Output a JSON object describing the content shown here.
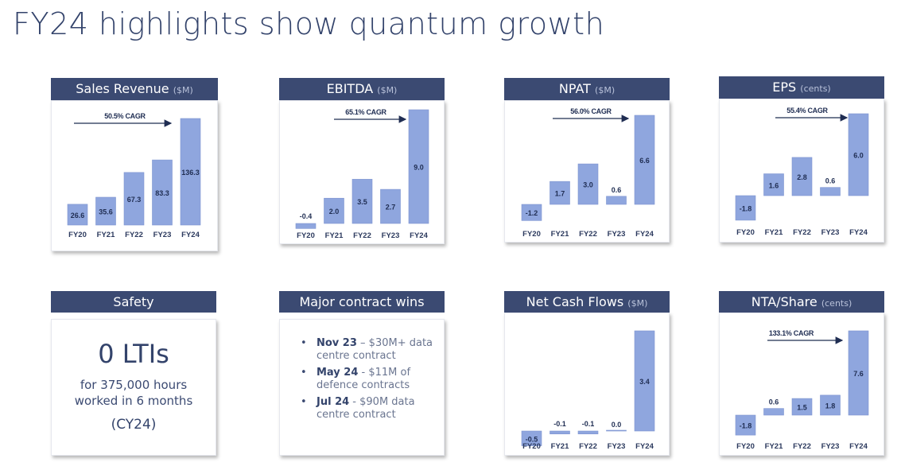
{
  "page_title": "FY24 highlights show quantum growth",
  "colors": {
    "header_bg": "#3b4a72",
    "bar": "#8fa6de",
    "bar_stroke": "#7e95d0",
    "text": "#2c3a5e"
  },
  "safety": {
    "header": "Safety",
    "big": "0 LTIs",
    "line1": "for 375,000 hours",
    "line2": "worked in 6 months",
    "period": "(CY24)"
  },
  "contracts": {
    "header": "Major contract wins",
    "items": [
      {
        "bold": "Nov 23",
        "line1": " – $30M+ data",
        "line2": "centre contract"
      },
      {
        "bold": "May 24",
        "line1": " - $11M of",
        "line2": "defence contracts"
      },
      {
        "bold": "Jul 24",
        "line1": " - $90M data",
        "line2": "centre contract"
      }
    ]
  },
  "chart_data": [
    {
      "id": "sales",
      "type": "bar",
      "title": "Sales Revenue",
      "unit": "($M)",
      "categories": [
        "FY20",
        "FY21",
        "FY22",
        "FY23",
        "FY24"
      ],
      "values": [
        26.6,
        35.6,
        67.3,
        83.3,
        136.3
      ],
      "labels": [
        "26.6",
        "35.6",
        "67.3",
        "83.3",
        "136.3"
      ],
      "cagr": "50.5% CAGR"
    },
    {
      "id": "ebitda",
      "type": "bar",
      "title": "EBITDA",
      "unit": "($M)",
      "categories": [
        "FY20",
        "FY21",
        "FY22",
        "FY23",
        "FY24"
      ],
      "values": [
        -0.4,
        2.0,
        3.5,
        2.7,
        9.0
      ],
      "labels": [
        "-0.4",
        "2.0",
        "3.5",
        "2.7",
        "9.0"
      ],
      "cagr": "65.1% CAGR"
    },
    {
      "id": "npat",
      "type": "bar",
      "title": "NPAT",
      "unit": "($M)",
      "categories": [
        "FY20",
        "FY21",
        "FY22",
        "FY23",
        "FY24"
      ],
      "values": [
        -1.2,
        1.7,
        3.0,
        0.6,
        6.6
      ],
      "labels": [
        "-1.2",
        "1.7",
        "3.0",
        "0.6",
        "6.6"
      ],
      "cagr": "56.0% CAGR"
    },
    {
      "id": "eps",
      "type": "bar",
      "title": "EPS",
      "unit": "(cents)",
      "categories": [
        "FY20",
        "FY21",
        "FY22",
        "FY23",
        "FY24"
      ],
      "values": [
        -1.8,
        1.6,
        2.8,
        0.6,
        6.0
      ],
      "labels": [
        "-1.8",
        "1.6",
        "2.8",
        "0.6",
        "6.0"
      ],
      "cagr": "55.4% CAGR"
    },
    {
      "id": "netcash",
      "type": "bar",
      "title": "Net Cash Flows",
      "unit": "($M)",
      "categories": [
        "FY20",
        "FY21",
        "FY22",
        "FY23",
        "FY24"
      ],
      "values": [
        -0.5,
        -0.1,
        -0.1,
        0.0,
        3.4
      ],
      "labels": [
        "-0.5",
        "-0.1",
        "-0.1",
        "0.0",
        "3.4"
      ],
      "cagr": ""
    },
    {
      "id": "nta",
      "type": "bar",
      "title": "NTA/Share",
      "unit": "(cents)",
      "categories": [
        "FY20",
        "FY21",
        "FY22",
        "FY23",
        "FY24"
      ],
      "values": [
        -1.8,
        0.6,
        1.5,
        1.8,
        7.6
      ],
      "labels": [
        "-1.8",
        "0.6",
        "1.5",
        "1.8",
        "7.6"
      ],
      "cagr": "133.1% CAGR"
    }
  ]
}
